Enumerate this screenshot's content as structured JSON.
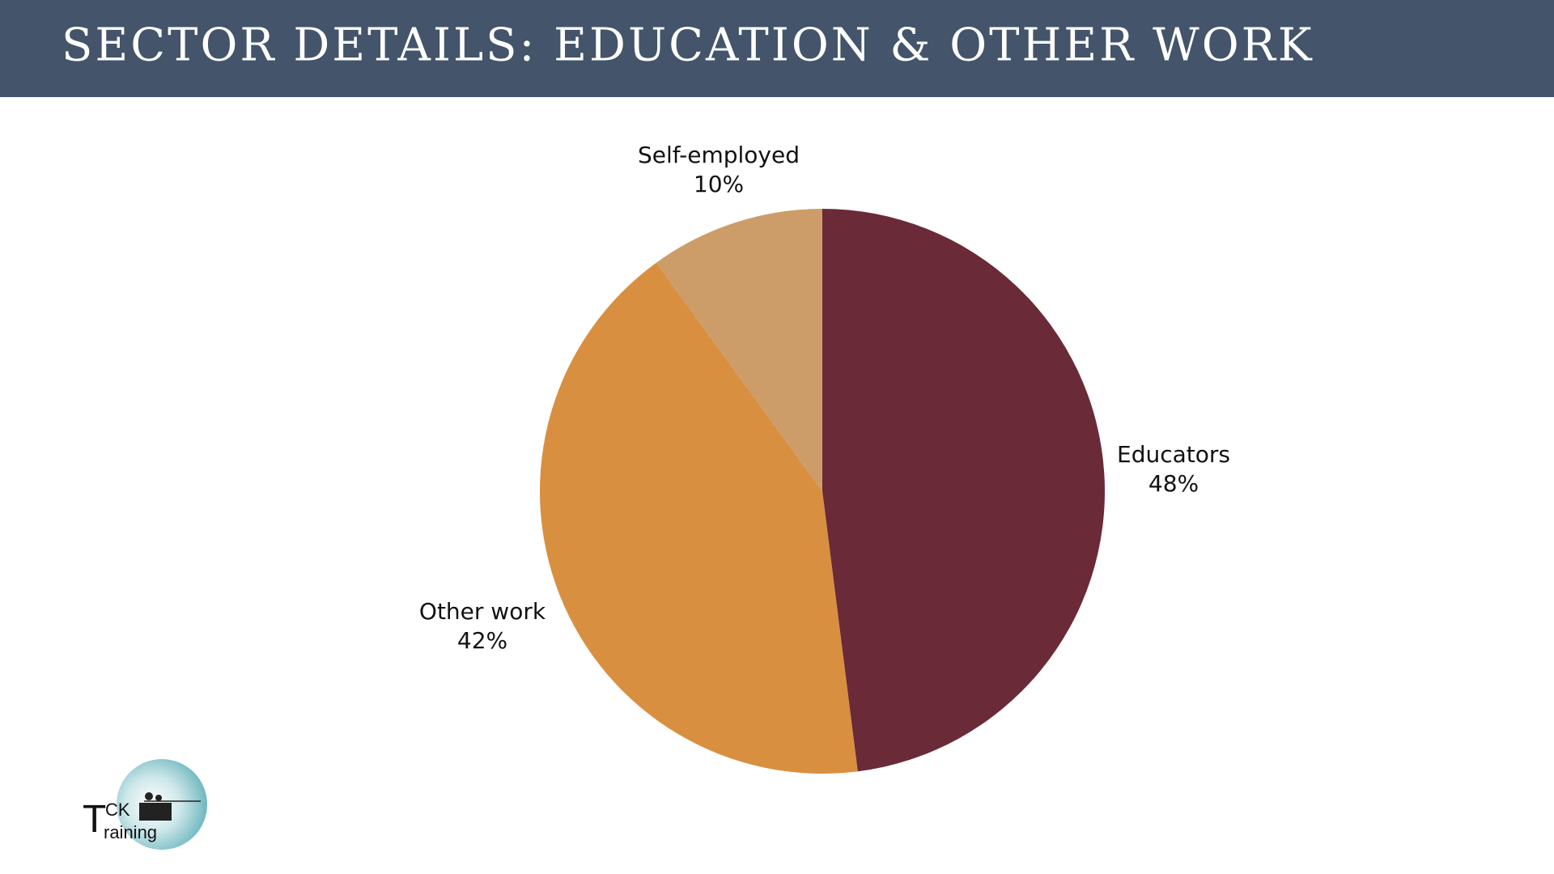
{
  "chart_data": {
    "type": "pie",
    "title": "SECTOR DETAILS: EDUCATION & OTHER WORK",
    "categories": [
      "Educators",
      "Other work",
      "Self-employed"
    ],
    "values": [
      48,
      42,
      10
    ],
    "value_labels": [
      "48%",
      "42%",
      "10%"
    ],
    "colors": [
      "#6a2a38",
      "#d98f40",
      "#cd9d69"
    ]
  },
  "logo": {
    "big_letter": "T",
    "top": "CK",
    "bottom": "raining"
  }
}
